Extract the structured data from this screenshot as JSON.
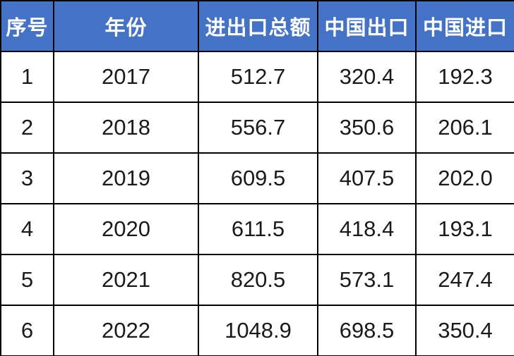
{
  "colors": {
    "header_background": "#4472C4",
    "header_text": "#FFFFFF",
    "body_text": "#1A1A1A",
    "body_background": "#FFFFFF",
    "grid_border": "#000000"
  },
  "chart_data": {
    "type": "table",
    "title": "",
    "columns": [
      "序号",
      "年份",
      "进出口总额",
      "中国出口",
      "中国进口"
    ],
    "rows": [
      [
        "1",
        "2017",
        "512.7",
        "320.4",
        "192.3"
      ],
      [
        "2",
        "2018",
        "556.7",
        "350.6",
        "206.1"
      ],
      [
        "3",
        "2019",
        "609.5",
        "407.5",
        "202.0"
      ],
      [
        "4",
        "2020",
        "611.5",
        "418.4",
        "193.1"
      ],
      [
        "5",
        "2021",
        "820.5",
        "573.1",
        "247.4"
      ],
      [
        "6",
        "2022",
        "1048.9",
        "698.5",
        "350.4"
      ]
    ]
  }
}
